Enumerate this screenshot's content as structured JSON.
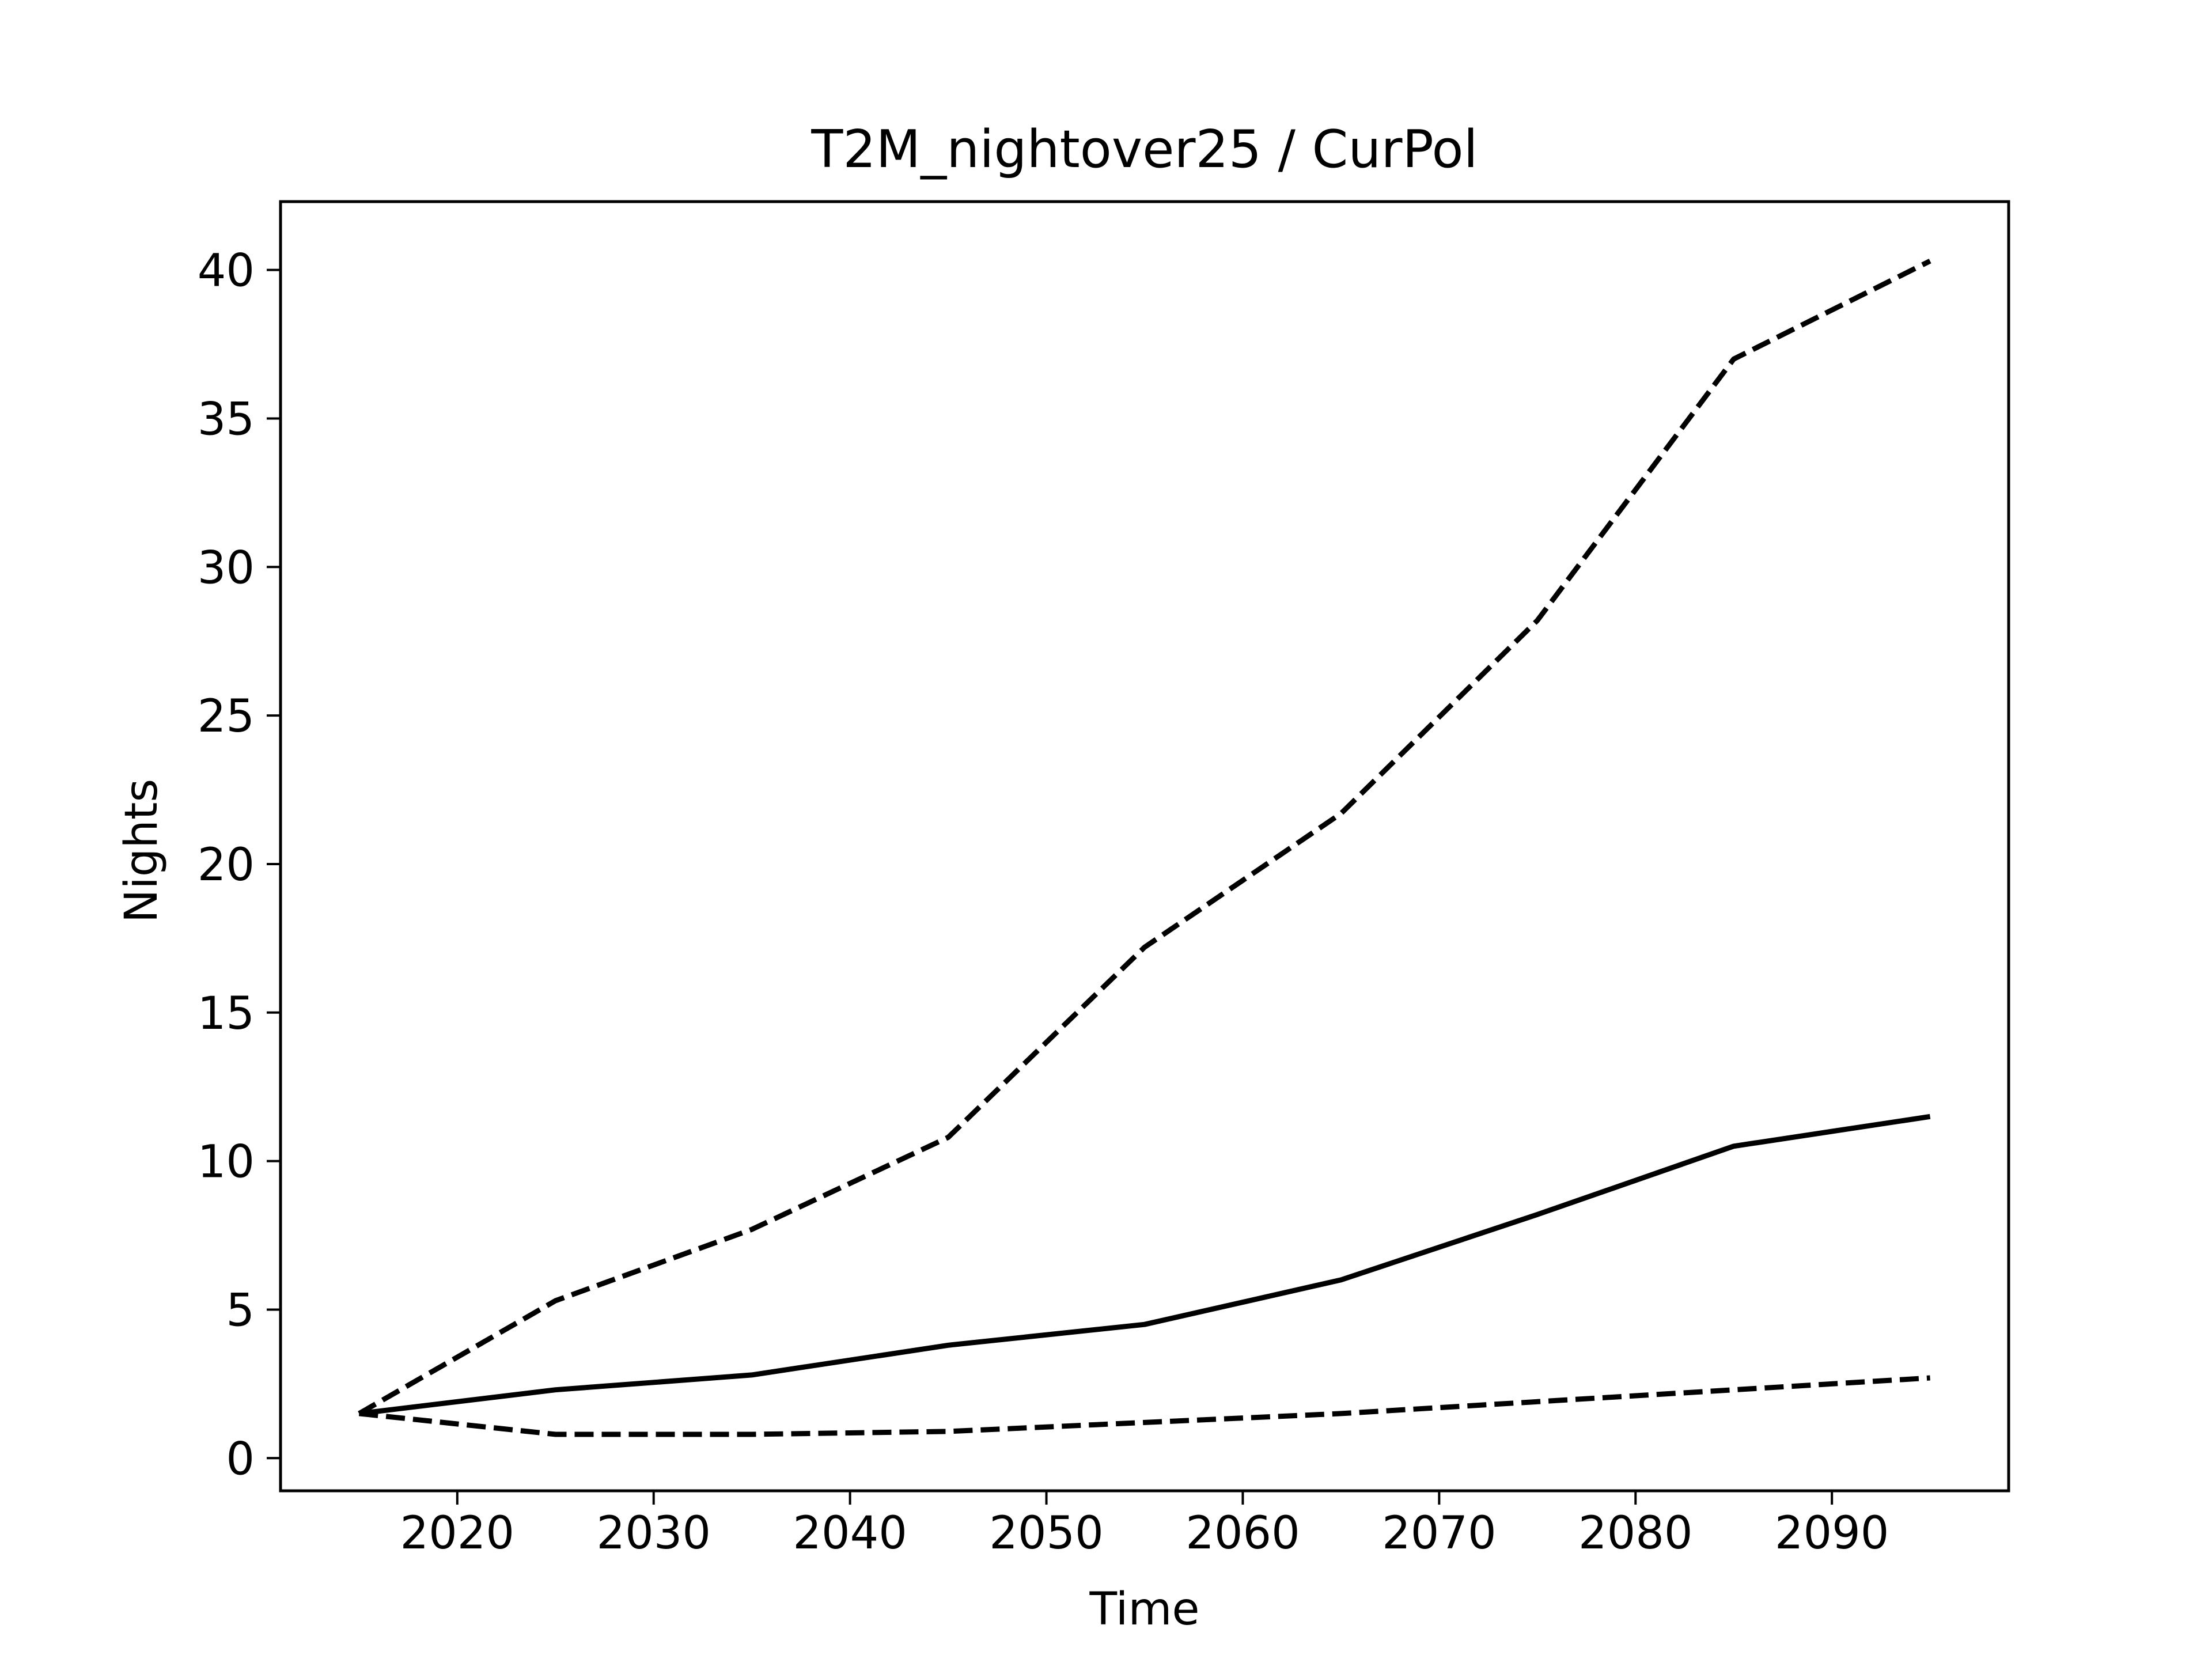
{
  "chart_data": {
    "type": "line",
    "title": "T2M_nightover25 / CurPol",
    "xlabel": "Time",
    "ylabel": "Nights",
    "x": [
      2015,
      2025,
      2035,
      2045,
      2055,
      2065,
      2075,
      2085,
      2095
    ],
    "xlim": [
      2011,
      2099
    ],
    "ylim": [
      -1.1,
      42.3
    ],
    "xticks": [
      2020,
      2030,
      2040,
      2050,
      2060,
      2070,
      2080,
      2090
    ],
    "yticks": [
      0,
      5,
      10,
      15,
      20,
      25,
      30,
      35,
      40
    ],
    "grid": false,
    "legend": "none",
    "series": [
      {
        "style": "dashed",
        "color": "#000000",
        "values": [
          1.5,
          5.3,
          7.7,
          10.8,
          17.2,
          21.7,
          28.2,
          37.0,
          40.3
        ]
      },
      {
        "style": "solid",
        "color": "#000000",
        "values": [
          1.5,
          2.3,
          2.8,
          3.8,
          4.5,
          6.0,
          8.2,
          10.5,
          11.5
        ]
      },
      {
        "style": "dashed",
        "color": "#000000",
        "values": [
          1.5,
          0.8,
          0.8,
          0.9,
          1.2,
          1.5,
          1.9,
          2.3,
          2.7
        ]
      }
    ]
  }
}
